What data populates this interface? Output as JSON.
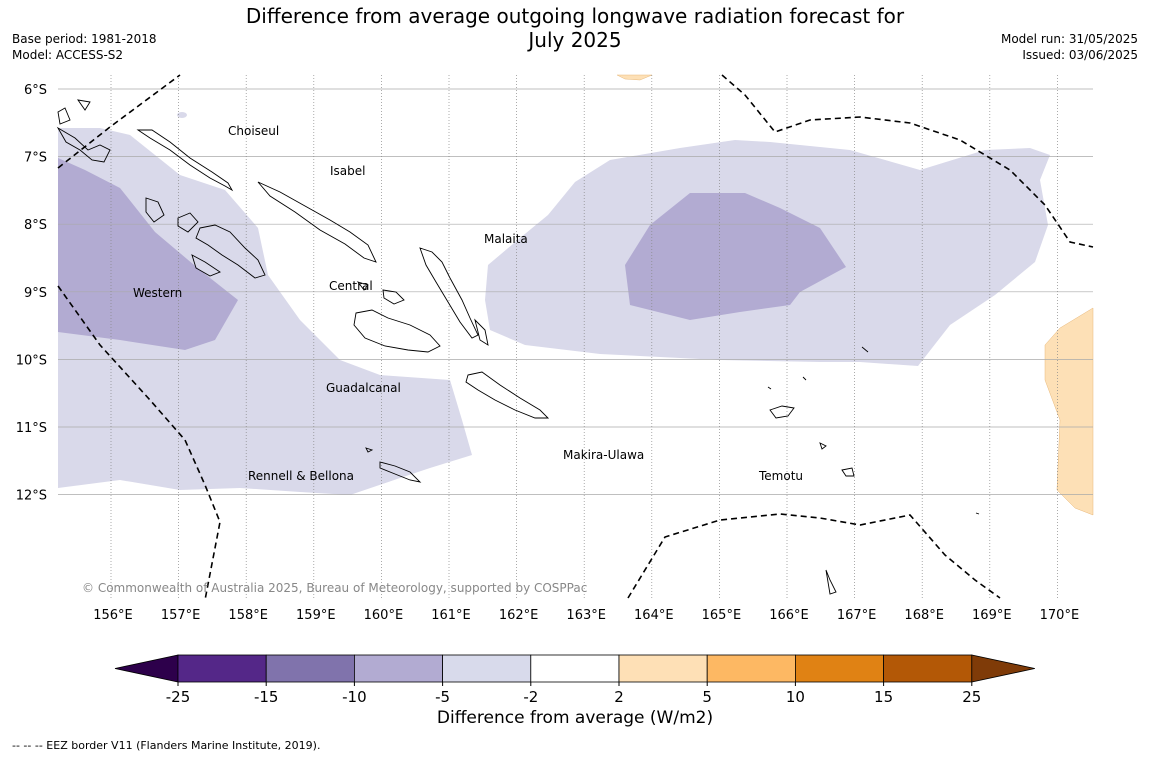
{
  "title_line1": "Difference from average outgoing longwave radiation forecast for",
  "title_line2": "July 2025",
  "meta_left": {
    "base_period": "Base period: 1981-2018",
    "model": "Model: ACCESS-S2"
  },
  "meta_right": {
    "model_run": "Model run: 31/05/2025",
    "issued": "Issued: 03/06/2025"
  },
  "map": {
    "lat_labels": [
      "6°S",
      "7°S",
      "8°S",
      "9°S",
      "10°S",
      "11°S",
      "12°S"
    ],
    "lon_labels": [
      "156°E",
      "157°E",
      "158°E",
      "159°E",
      "160°E",
      "161°E",
      "162°E",
      "163°E",
      "164°E",
      "165°E",
      "166°E",
      "167°E",
      "168°E",
      "169°E",
      "170°E"
    ],
    "places": [
      "Choiseul",
      "Isabel",
      "Malaita",
      "Western",
      "Central",
      "Guadalcanal",
      "Makira-Ulawa",
      "Temotu",
      "Rennell & Bellona"
    ],
    "copyright": "© Commonwealth of Australia 2025, Bureau of Meteorology, supported by COSPPac",
    "colors": {
      "light_purple": "#d9d9ea",
      "mid_purple": "#b2abd2",
      "light_orange": "#fde0b6"
    }
  },
  "colorbar": {
    "ticks": [
      "-25",
      "-15",
      "-10",
      "-5",
      "-2",
      "2",
      "5",
      "10",
      "15",
      "25"
    ],
    "colors": [
      "#2d004b",
      "#542788",
      "#8073ac",
      "#b2abd2",
      "#d8daeb",
      "#ffffff",
      "#fee0b6",
      "#fdb863",
      "#e08214",
      "#b35806",
      "#7f3b08"
    ],
    "label": "Difference from average (W/m2)"
  },
  "footnote": "--  --  -- EEZ border V11 (Flanders Marine Institute, 2019)."
}
